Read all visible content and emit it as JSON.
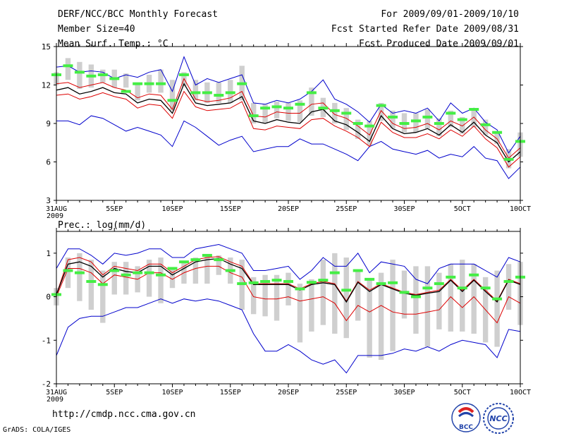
{
  "header": {
    "left": [
      "DERF/NCC/BCC Monthly Forecast",
      "Member Size=40",
      "Mean Surf. Temp.: °C"
    ],
    "right": [
      "For 2009/09/01-2009/10/10",
      "Fcst Started Refer Date 2009/08/31",
      "Fcst Produced Date 2009/09/01"
    ]
  },
  "footer": {
    "url": "http://cmdp.ncc.cma.gov.cn",
    "credit": "GrADS: COLA/IGES"
  },
  "logos": {
    "bcc_text": "BCC",
    "ncc_text": "NCC"
  },
  "colors": {
    "max_min": "#0000cc",
    "percentile_band": "#dd0000",
    "median": "#000000",
    "box": "#cfcfcf",
    "mean_marker": "#44ee44"
  },
  "chart_data": [
    {
      "type": "line",
      "title": "Mean Surf. Temp.: °C",
      "ylim": [
        3,
        15
      ],
      "yticks": [
        3,
        6,
        9,
        12,
        15
      ],
      "ytick_labels": [
        "3",
        "6",
        "9",
        "12",
        "15"
      ],
      "xlim": [
        0,
        40
      ],
      "xticks": [
        0,
        5,
        10,
        15,
        20,
        25,
        30,
        35,
        40
      ],
      "xtick_labels": [
        "31AUG",
        "5SEP",
        "10SEP",
        "15SEP",
        "20SEP",
        "25SEP",
        "30SEP",
        "5OCT",
        "10OCT"
      ],
      "year_label": "2009",
      "series": [
        {
          "name": "max",
          "values": [
            13.4,
            13.5,
            13.0,
            13.1,
            13.0,
            12.5,
            12.8,
            12.6,
            13.0,
            13.2,
            11.5,
            14.2,
            12.0,
            12.5,
            12.2,
            12.5,
            12.8,
            10.6,
            10.5,
            10.8,
            10.6,
            10.9,
            11.5,
            12.4,
            10.9,
            10.5,
            9.9,
            9.1,
            10.5,
            9.8,
            10.0,
            9.8,
            10.2,
            9.2,
            10.6,
            9.8,
            10.2,
            9.1,
            8.5,
            6.7,
            8.0
          ]
        },
        {
          "name": "p_high",
          "values": [
            12.1,
            12.2,
            11.8,
            12.0,
            12.2,
            11.8,
            11.6,
            11.0,
            11.3,
            11.2,
            10.1,
            12.5,
            10.9,
            10.7,
            10.8,
            11.0,
            11.5,
            9.6,
            9.5,
            9.9,
            9.8,
            9.8,
            10.5,
            10.6,
            9.7,
            9.4,
            8.8,
            8.1,
            10.0,
            9.0,
            8.6,
            8.7,
            9.0,
            8.5,
            9.2,
            8.8,
            9.5,
            8.5,
            7.8,
            6.3,
            7.1
          ]
        },
        {
          "name": "median",
          "values": [
            11.6,
            11.8,
            11.3,
            11.5,
            11.8,
            11.4,
            11.3,
            10.6,
            10.9,
            10.8,
            9.8,
            12.1,
            10.6,
            10.4,
            10.5,
            10.6,
            11.1,
            9.2,
            9.0,
            9.3,
            9.1,
            9.0,
            9.9,
            10.1,
            9.2,
            8.9,
            8.3,
            7.6,
            9.6,
            8.6,
            8.2,
            8.3,
            8.6,
            8.1,
            8.9,
            8.3,
            9.1,
            8.1,
            7.5,
            6.0,
            6.8
          ]
        },
        {
          "name": "p_low",
          "values": [
            11.2,
            11.3,
            10.9,
            11.1,
            11.4,
            11.1,
            10.9,
            10.2,
            10.5,
            10.4,
            9.4,
            11.5,
            10.3,
            10.0,
            10.1,
            10.2,
            10.7,
            8.6,
            8.5,
            8.8,
            8.7,
            8.6,
            9.3,
            9.4,
            8.8,
            8.4,
            7.9,
            7.2,
            9.1,
            8.3,
            7.9,
            7.9,
            8.2,
            7.8,
            8.5,
            8.0,
            8.8,
            7.8,
            7.1,
            5.6,
            6.4
          ]
        },
        {
          "name": "min",
          "values": [
            9.2,
            9.2,
            8.9,
            9.6,
            9.4,
            8.9,
            8.4,
            8.7,
            8.4,
            8.1,
            7.2,
            9.2,
            8.7,
            8.0,
            7.3,
            7.7,
            8.0,
            6.8,
            7.0,
            7.2,
            7.2,
            7.8,
            7.4,
            7.4,
            7.0,
            6.6,
            6.1,
            7.2,
            7.6,
            7.0,
            6.8,
            6.6,
            6.9,
            6.3,
            6.6,
            6.4,
            7.2,
            6.3,
            6.1,
            4.7,
            5.6
          ]
        },
        {
          "name": "box_top",
          "values": [
            13.0,
            14.1,
            13.8,
            13.6,
            13.2,
            13.2,
            12.9,
            12.2,
            12.8,
            13.2,
            12.4,
            13.0,
            12.4,
            12.2,
            12.2,
            12.4,
            13.5,
            10.6,
            10.5,
            10.7,
            10.6,
            10.8,
            11.8,
            11.0,
            10.6,
            10.2,
            9.3,
            9.2,
            10.6,
            10.0,
            9.8,
            9.8,
            10.1,
            9.4,
            10.0,
            9.5,
            10.2,
            9.3,
            8.4,
            7.0,
            8.3
          ]
        },
        {
          "name": "box_bottom",
          "values": [
            12.0,
            12.4,
            11.7,
            11.8,
            12.2,
            11.8,
            11.8,
            10.8,
            11.4,
            11.4,
            10.0,
            11.9,
            10.8,
            10.6,
            10.6,
            10.6,
            10.8,
            9.0,
            9.0,
            9.4,
            9.2,
            9.1,
            9.6,
            9.5,
            9.0,
            8.5,
            7.8,
            7.3,
            9.2,
            8.6,
            8.3,
            8.3,
            8.6,
            8.0,
            8.7,
            8.2,
            8.7,
            8.1,
            7.4,
            5.5,
            6.4
          ]
        },
        {
          "name": "mean_marker",
          "values": [
            12.8,
            13.5,
            13.0,
            12.7,
            12.8,
            12.5,
            11.5,
            12.1,
            12.1,
            12.1,
            10.8,
            12.8,
            11.4,
            11.4,
            11.2,
            11.4,
            12.1,
            9.6,
            10.2,
            10.3,
            10.2,
            10.5,
            11.4,
            10.2,
            10.0,
            9.8,
            9.0,
            8.8,
            10.4,
            9.5,
            9.0,
            9.2,
            9.5,
            9.0,
            9.8,
            9.3,
            10.1,
            8.9,
            8.3,
            6.2,
            7.6
          ]
        }
      ]
    },
    {
      "type": "line",
      "title": "Prec.: log(mm/d)",
      "ylim": [
        -2,
        1.5
      ],
      "yticks": [
        -2,
        -1,
        0,
        1
      ],
      "ytick_labels": [
        "-2",
        "-1",
        "0",
        "1"
      ],
      "xlim": [
        0,
        40
      ],
      "xticks": [
        0,
        5,
        10,
        15,
        20,
        25,
        30,
        35,
        40
      ],
      "xtick_labels": [
        "31AUG",
        "5SEP",
        "10SEP",
        "15SEP",
        "20SEP",
        "25SEP",
        "30SEP",
        "5OCT",
        "10OCT"
      ],
      "year_label": "2009",
      "series": [
        {
          "name": "max",
          "values": [
            0.65,
            1.1,
            1.1,
            0.95,
            0.75,
            1.0,
            0.95,
            1.0,
            1.1,
            1.1,
            0.9,
            0.9,
            1.1,
            1.15,
            1.2,
            1.1,
            1.0,
            0.6,
            0.6,
            0.65,
            0.7,
            0.4,
            0.6,
            0.9,
            0.7,
            0.7,
            1.0,
            0.55,
            0.8,
            0.75,
            0.7,
            0.4,
            0.3,
            0.65,
            0.75,
            0.75,
            0.75,
            0.6,
            0.45,
            0.9,
            0.8
          ]
        },
        {
          "name": "p_high",
          "values": [
            0.05,
            0.85,
            0.9,
            0.8,
            0.5,
            0.7,
            0.65,
            0.6,
            0.75,
            0.75,
            0.55,
            0.7,
            0.85,
            0.9,
            0.92,
            0.8,
            0.7,
            0.3,
            0.3,
            0.3,
            0.3,
            0.18,
            0.3,
            0.35,
            0.3,
            -0.1,
            0.35,
            0.15,
            0.3,
            0.2,
            0.1,
            0.05,
            0.1,
            0.15,
            0.4,
            0.15,
            0.4,
            0.15,
            -0.1,
            0.4,
            0.3
          ]
        },
        {
          "name": "median",
          "values": [
            0.05,
            0.75,
            0.8,
            0.7,
            0.45,
            0.65,
            0.58,
            0.55,
            0.7,
            0.7,
            0.5,
            0.65,
            0.8,
            0.85,
            0.88,
            0.75,
            0.65,
            0.28,
            0.28,
            0.28,
            0.28,
            0.15,
            0.28,
            0.32,
            0.28,
            -0.12,
            0.33,
            0.12,
            0.28,
            0.18,
            0.08,
            0.03,
            0.08,
            0.12,
            0.38,
            0.12,
            0.38,
            0.12,
            -0.12,
            0.38,
            0.28
          ]
        },
        {
          "name": "p_low",
          "values": [
            0.0,
            0.65,
            0.65,
            0.55,
            0.3,
            0.5,
            0.45,
            0.4,
            0.55,
            0.55,
            0.4,
            0.55,
            0.65,
            0.7,
            0.7,
            0.55,
            0.45,
            0.0,
            -0.05,
            -0.05,
            0.0,
            -0.1,
            -0.05,
            0.0,
            -0.15,
            -0.55,
            -0.2,
            -0.35,
            -0.2,
            -0.35,
            -0.4,
            -0.4,
            -0.35,
            -0.3,
            0.0,
            -0.25,
            0.0,
            -0.3,
            -0.6,
            0.0,
            -0.15
          ]
        },
        {
          "name": "min",
          "values": [
            -1.35,
            -0.7,
            -0.5,
            -0.45,
            -0.45,
            -0.35,
            -0.25,
            -0.25,
            -0.15,
            -0.05,
            -0.15,
            -0.05,
            -0.1,
            -0.05,
            -0.1,
            -0.2,
            -0.3,
            -0.85,
            -1.25,
            -1.25,
            -1.1,
            -1.25,
            -1.45,
            -1.55,
            -1.45,
            -1.75,
            -1.35,
            -1.35,
            -1.35,
            -1.3,
            -1.2,
            -1.25,
            -1.15,
            -1.25,
            -1.1,
            -1.0,
            -1.05,
            -1.1,
            -1.4,
            -0.75,
            -0.8
          ]
        },
        {
          "name": "box_top",
          "values": [
            0.2,
            0.9,
            1.0,
            0.85,
            0.6,
            0.8,
            0.8,
            0.7,
            0.85,
            0.9,
            0.65,
            0.8,
            0.9,
            0.95,
            0.95,
            0.9,
            0.85,
            0.45,
            0.5,
            0.5,
            0.55,
            0.3,
            0.4,
            0.85,
            1.0,
            0.9,
            0.6,
            0.4,
            0.55,
            0.85,
            0.6,
            0.7,
            0.7,
            0.55,
            0.75,
            0.85,
            0.75,
            0.45,
            0.6,
            0.75,
            0.8
          ]
        },
        {
          "name": "box_bottom",
          "values": [
            -0.2,
            0.2,
            -0.1,
            -0.3,
            -0.6,
            0.05,
            0.05,
            0.1,
            0.0,
            -0.15,
            0.2,
            0.3,
            0.3,
            0.3,
            0.5,
            0.3,
            -0.3,
            -0.4,
            -0.45,
            -0.55,
            -0.2,
            -1.05,
            -0.8,
            -0.65,
            -0.85,
            -0.95,
            -0.55,
            -1.4,
            -1.45,
            -1.25,
            -0.5,
            -0.85,
            -1.15,
            -0.75,
            -0.8,
            -0.8,
            -0.85,
            -1.05,
            -1.15,
            -0.3,
            -0.65
          ]
        },
        {
          "name": "mean_marker",
          "values": [
            0.05,
            0.6,
            0.55,
            0.35,
            0.28,
            0.6,
            0.5,
            0.55,
            0.55,
            0.5,
            0.65,
            0.8,
            0.85,
            0.95,
            0.85,
            0.6,
            0.3,
            0.32,
            0.35,
            0.38,
            0.35,
            0.18,
            0.33,
            0.38,
            0.55,
            0.15,
            0.6,
            0.4,
            0.3,
            0.32,
            0.1,
            0.0,
            0.2,
            0.3,
            0.45,
            0.2,
            0.5,
            0.2,
            -0.05,
            0.35,
            0.45
          ]
        }
      ]
    }
  ]
}
